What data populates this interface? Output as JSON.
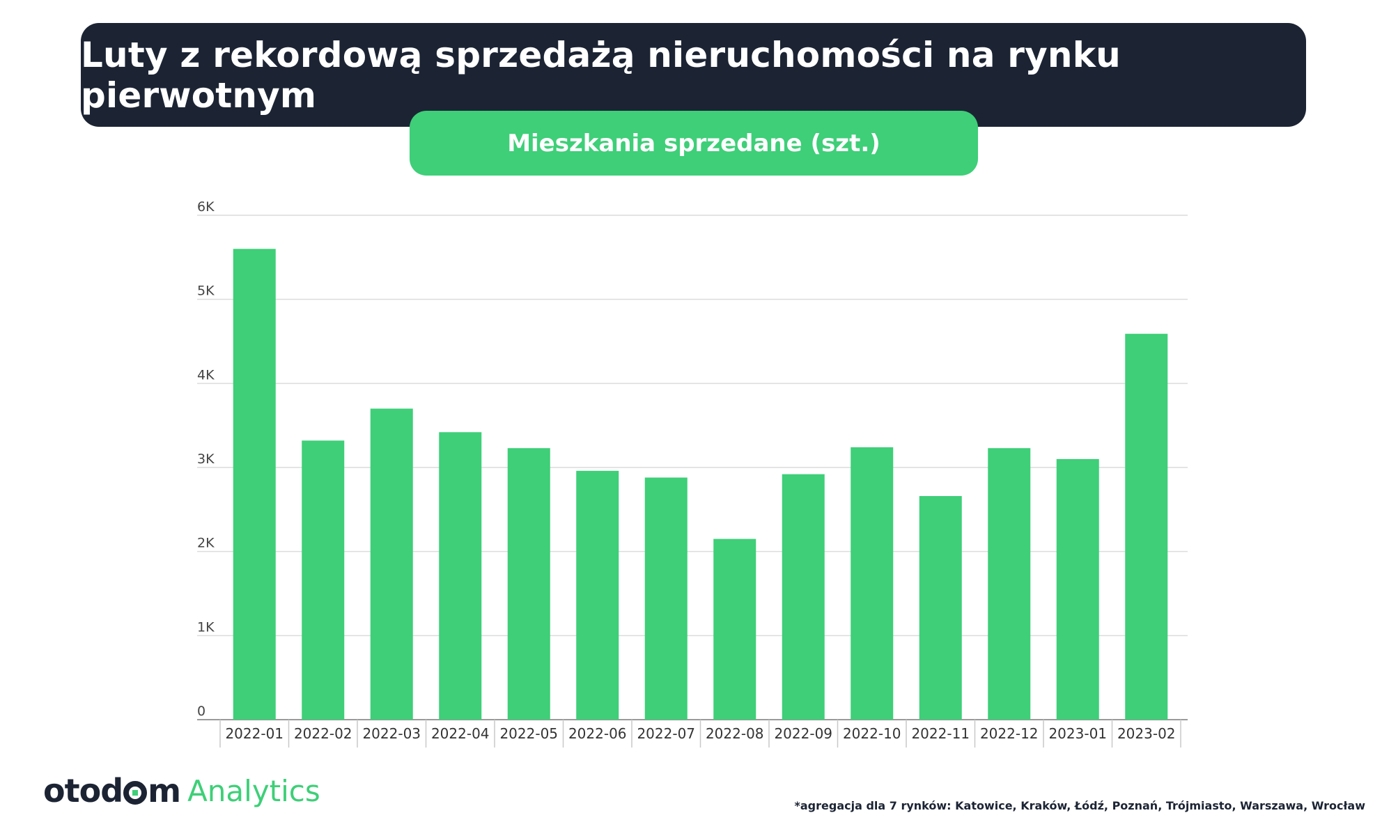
{
  "header": {
    "title": "Luty z rekordową sprzedażą nieruchomości na rynku pierwotnym",
    "subtitle": "Mieszkania sprzedane (szt.)"
  },
  "brand": {
    "logo_word_1": "otod",
    "logo_word_2": "m",
    "logo_suffix": "Analytics",
    "accent_color": "#3ecf78",
    "dark_color": "#1c2434"
  },
  "footnote": "*agregacja dla 7 rynków: Katowice, Kraków, Łódź, Poznań, Trójmiasto, Warszawa, Wrocław",
  "chart_data": {
    "type": "bar",
    "title": "Mieszkania sprzedane (szt.)",
    "categories": [
      "2022-01",
      "2022-02",
      "2022-03",
      "2022-04",
      "2022-05",
      "2022-06",
      "2022-07",
      "2022-08",
      "2022-09",
      "2022-10",
      "2022-11",
      "2022-12",
      "2023-01",
      "2023-02"
    ],
    "values": [
      5600,
      3320,
      3700,
      3420,
      3230,
      2960,
      2880,
      2150,
      2920,
      3240,
      2660,
      3230,
      3100,
      4590
    ],
    "ylim": [
      0,
      6000
    ],
    "yticks": [
      0,
      1000,
      2000,
      3000,
      4000,
      5000,
      6000
    ],
    "ytick_labels": [
      "0",
      "1K",
      "2K",
      "3K",
      "4K",
      "5K",
      "6K"
    ],
    "xlabel": "",
    "ylabel": "",
    "grid": true,
    "bar_color": "#3ecf78"
  }
}
